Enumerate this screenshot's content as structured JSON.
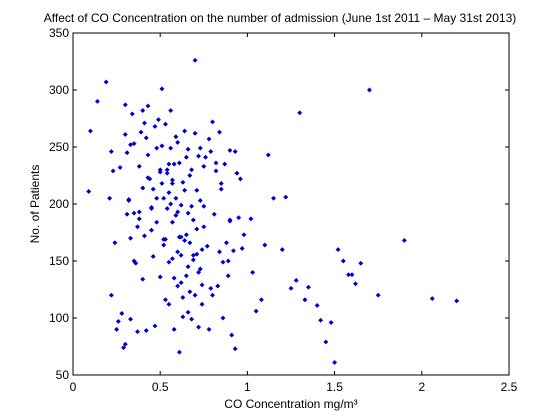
{
  "chart_data": {
    "type": "scatter",
    "title": "Affect of CO Concentration on the number of admission (June 1st 2011 – May 31st 2013)",
    "xlabel": "CO Concentration mg/m³",
    "ylabel": "No. of Patients",
    "xlim": [
      0,
      2.5
    ],
    "ylim": [
      50,
      350
    ],
    "xticks": [
      "0",
      "0.5",
      "1",
      "1.5",
      "2",
      "2.5"
    ],
    "yticks": [
      "50",
      "100",
      "150",
      "200",
      "250",
      "300",
      "350"
    ],
    "grid": false,
    "legend": "none",
    "marker_color": "#0000cc",
    "series": [
      {
        "x": [
          0.09,
          0.1,
          0.14,
          0.19,
          0.21,
          0.22,
          0.22,
          0.23,
          0.25,
          0.26,
          0.27,
          0.29,
          0.3,
          0.3,
          0.31,
          0.31,
          0.32,
          0.33,
          0.33,
          0.34,
          0.35,
          0.35,
          0.36,
          0.37,
          0.38,
          0.38,
          0.39,
          0.4,
          0.4,
          0.41,
          0.41,
          0.42,
          0.43,
          0.43,
          0.44,
          0.45,
          0.45,
          0.46,
          0.46,
          0.47,
          0.48,
          0.48,
          0.49,
          0.5,
          0.5,
          0.51,
          0.51,
          0.52,
          0.52,
          0.53,
          0.53,
          0.54,
          0.54,
          0.55,
          0.55,
          0.56,
          0.56,
          0.57,
          0.57,
          0.58,
          0.58,
          0.59,
          0.59,
          0.6,
          0.6,
          0.61,
          0.61,
          0.62,
          0.62,
          0.63,
          0.63,
          0.64,
          0.64,
          0.65,
          0.65,
          0.66,
          0.66,
          0.67,
          0.67,
          0.68,
          0.68,
          0.69,
          0.69,
          0.7,
          0.7,
          0.71,
          0.71,
          0.72,
          0.72,
          0.73,
          0.73,
          0.74,
          0.74,
          0.75,
          0.75,
          0.76,
          0.77,
          0.78,
          0.79,
          0.8,
          0.81,
          0.82,
          0.83,
          0.84,
          0.85,
          0.86,
          0.87,
          0.88,
          0.89,
          0.9,
          0.91,
          0.92,
          0.93,
          0.95,
          0.97,
          1.02,
          1.05,
          1.08,
          1.12,
          1.15,
          1.2,
          1.25,
          1.3,
          1.35,
          1.4,
          1.42,
          1.45,
          1.48,
          1.5,
          1.52,
          1.55,
          1.58,
          1.6,
          1.62,
          1.65,
          1.7,
          1.75,
          1.9,
          2.06,
          2.2,
          0.3,
          0.35,
          0.4,
          0.45,
          0.5,
          0.55,
          0.6,
          0.65,
          0.7,
          0.75,
          0.8,
          0.85,
          0.9,
          0.52,
          0.57,
          0.62,
          0.67,
          0.72,
          0.58,
          0.63,
          0.68,
          0.55,
          0.6,
          0.48,
          0.53,
          0.43,
          0.38,
          0.33,
          0.28,
          0.24,
          0.74,
          0.78,
          0.82,
          0.86,
          0.9,
          0.94,
          0.98,
          1.03,
          0.56,
          0.61,
          0.66,
          0.71,
          0.47,
          0.42,
          0.37,
          0.32,
          0.73,
          0.79,
          0.84,
          0.89,
          0.93,
          0.96,
          1.1,
          1.22,
          1.28,
          1.33,
          0.51,
          0.59,
          0.64,
          0.69,
          0.54,
          0.57,
          0.62,
          0.66
        ],
        "y": [
          211,
          264,
          290,
          307,
          205,
          246,
          120,
          229,
          90,
          97,
          232,
          74,
          287,
          261,
          245,
          191,
          204,
          170,
          99,
          279,
          253,
          192,
          148,
          88,
          233,
          187,
          263,
          282,
          214,
          172,
          271,
          258,
          243,
          286,
          222,
          196,
          177,
          213,
          154,
          268,
          184,
          249,
          274,
          136,
          230,
          301,
          218,
          205,
          164,
          116,
          270,
          227,
          196,
          149,
          112,
          282,
          249,
          218,
          184,
          135,
          90,
          259,
          205,
          158,
          128,
          70,
          236,
          199,
          155,
          118,
          101,
          264,
          212,
          173,
          137,
          248,
          192,
          166,
          123,
          99,
          230,
          186,
          155,
          120,
          326,
          212,
          178,
          140,
          92,
          249,
          203,
          160,
          112,
          180,
          198,
          241,
          163,
          90,
          246,
          120,
          191,
          229,
          128,
          158,
          213,
          100,
          235,
          166,
          137,
          186,
          85,
          159,
          73,
          188,
          161,
          187,
          106,
          116,
          243,
          205,
          160,
          126,
          280,
          127,
          111,
          98,
          79,
          96,
          61,
          160,
          150,
          138,
          138,
          130,
          148,
          300,
          120,
          168,
          117,
          115,
          77,
          150,
          134,
          197,
          228,
          235,
          193,
          241,
          262,
          233,
          272,
          218,
          185,
          169,
          152,
          131,
          225,
          242,
          235,
          219,
          198,
          210,
          254,
          205,
          169,
          223,
          193,
          252,
          104,
          166,
          129,
          257,
          236,
          149,
          247,
          227,
          173,
          140,
          200,
          171,
          145,
          156,
          93,
          89,
          180,
          203,
          143,
          126,
          263,
          150,
          246,
          222,
          164,
          206,
          133,
          116,
          251,
          190,
          168,
          151,
          230,
          221,
          171,
          105
        ]
      }
    ]
  }
}
